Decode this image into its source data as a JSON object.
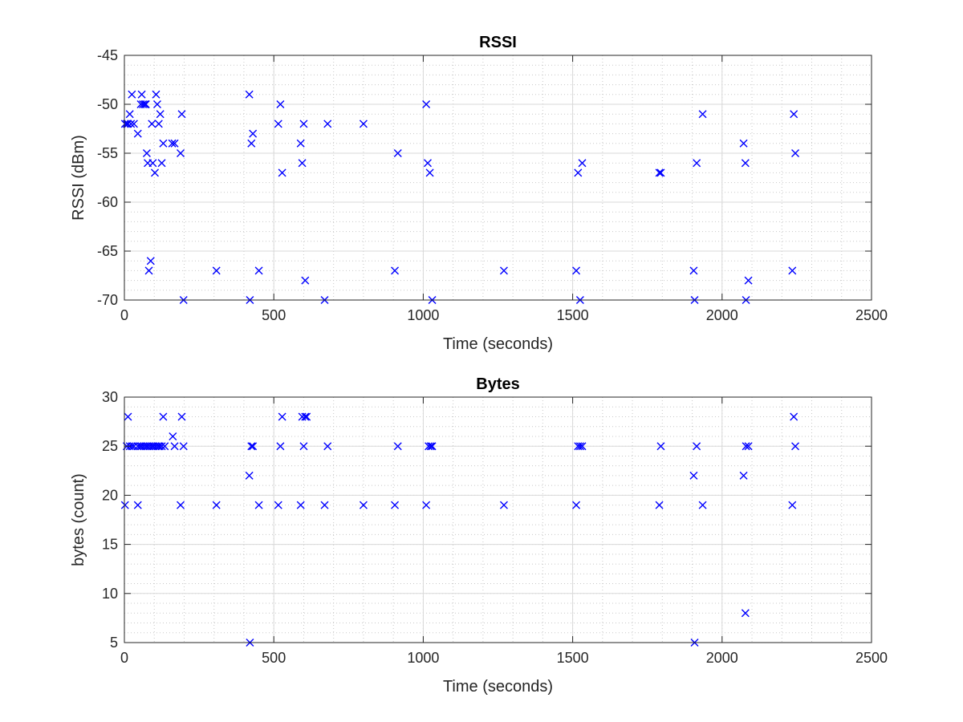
{
  "chart_data": [
    {
      "type": "scatter",
      "title": "RSSI",
      "xlabel": "Time (seconds)",
      "ylabel": "RSSI (dBm)",
      "xlim": [
        0,
        2500
      ],
      "ylim": [
        -70,
        -45
      ],
      "xticks": [
        0,
        500,
        1000,
        1500,
        2000,
        2500
      ],
      "yticks": [
        -70,
        -65,
        -60,
        -55,
        -50,
        -45
      ],
      "grid": true,
      "minor_grid": true,
      "marker": "x",
      "color": "#0000ff",
      "points": [
        [
          2,
          -52
        ],
        [
          8,
          -52
        ],
        [
          12,
          -52
        ],
        [
          18,
          -51
        ],
        [
          22,
          -52
        ],
        [
          25,
          -49
        ],
        [
          32,
          -52
        ],
        [
          45,
          -53
        ],
        [
          55,
          -50
        ],
        [
          58,
          -49
        ],
        [
          62,
          -50
        ],
        [
          68,
          -50
        ],
        [
          72,
          -50
        ],
        [
          75,
          -55
        ],
        [
          78,
          -56
        ],
        [
          82,
          -67
        ],
        [
          88,
          -66
        ],
        [
          92,
          -52
        ],
        [
          95,
          -56
        ],
        [
          102,
          -57
        ],
        [
          106,
          -49
        ],
        [
          110,
          -50
        ],
        [
          115,
          -52
        ],
        [
          120,
          -51
        ],
        [
          125,
          -56
        ],
        [
          130,
          -54
        ],
        [
          160,
          -54
        ],
        [
          168,
          -54
        ],
        [
          188,
          -55
        ],
        [
          192,
          -51
        ],
        [
          198,
          -70
        ],
        [
          308,
          -67
        ],
        [
          418,
          -49
        ],
        [
          420,
          -70
        ],
        [
          425,
          -54
        ],
        [
          430,
          -53
        ],
        [
          450,
          -67
        ],
        [
          515,
          -52
        ],
        [
          522,
          -50
        ],
        [
          528,
          -57
        ],
        [
          590,
          -54
        ],
        [
          595,
          -56
        ],
        [
          600,
          -52
        ],
        [
          605,
          -68
        ],
        [
          670,
          -70
        ],
        [
          680,
          -52
        ],
        [
          800,
          -52
        ],
        [
          905,
          -67
        ],
        [
          915,
          -55
        ],
        [
          1010,
          -50
        ],
        [
          1015,
          -56
        ],
        [
          1022,
          -57
        ],
        [
          1030,
          -70
        ],
        [
          1270,
          -67
        ],
        [
          1512,
          -67
        ],
        [
          1518,
          -57
        ],
        [
          1525,
          -70
        ],
        [
          1532,
          -56
        ],
        [
          1790,
          -57
        ],
        [
          1795,
          -57
        ],
        [
          1905,
          -67
        ],
        [
          1908,
          -70
        ],
        [
          1915,
          -56
        ],
        [
          1935,
          -51
        ],
        [
          2072,
          -54
        ],
        [
          2078,
          -56
        ],
        [
          2080,
          -70
        ],
        [
          2088,
          -68
        ],
        [
          2235,
          -67
        ],
        [
          2240,
          -51
        ],
        [
          2245,
          -55
        ]
      ]
    },
    {
      "type": "scatter",
      "title": "Bytes",
      "xlabel": "Time (seconds)",
      "ylabel": "bytes (count)",
      "xlim": [
        0,
        2500
      ],
      "ylim": [
        5,
        30
      ],
      "xticks": [
        0,
        500,
        1000,
        1500,
        2000,
        2500
      ],
      "yticks": [
        5,
        10,
        15,
        20,
        25,
        30
      ],
      "grid": true,
      "minor_grid": true,
      "marker": "x",
      "color": "#0000ff",
      "points": [
        [
          2,
          19
        ],
        [
          8,
          25
        ],
        [
          12,
          28
        ],
        [
          18,
          25
        ],
        [
          25,
          25
        ],
        [
          32,
          25
        ],
        [
          45,
          19
        ],
        [
          45,
          25
        ],
        [
          52,
          25
        ],
        [
          58,
          25
        ],
        [
          65,
          25
        ],
        [
          72,
          25
        ],
        [
          78,
          25
        ],
        [
          85,
          25
        ],
        [
          92,
          25
        ],
        [
          98,
          25
        ],
        [
          105,
          25
        ],
        [
          112,
          25
        ],
        [
          118,
          25
        ],
        [
          125,
          25
        ],
        [
          130,
          28
        ],
        [
          135,
          25
        ],
        [
          162,
          26
        ],
        [
          168,
          25
        ],
        [
          188,
          19
        ],
        [
          192,
          28
        ],
        [
          198,
          25
        ],
        [
          308,
          19
        ],
        [
          418,
          22
        ],
        [
          420,
          5
        ],
        [
          425,
          25
        ],
        [
          430,
          25
        ],
        [
          450,
          19
        ],
        [
          515,
          19
        ],
        [
          522,
          25
        ],
        [
          528,
          28
        ],
        [
          590,
          19
        ],
        [
          595,
          28
        ],
        [
          600,
          25
        ],
        [
          605,
          28
        ],
        [
          610,
          28
        ],
        [
          670,
          19
        ],
        [
          680,
          25
        ],
        [
          800,
          19
        ],
        [
          905,
          19
        ],
        [
          915,
          25
        ],
        [
          1010,
          19
        ],
        [
          1018,
          25
        ],
        [
          1025,
          25
        ],
        [
          1030,
          25
        ],
        [
          1270,
          19
        ],
        [
          1512,
          19
        ],
        [
          1518,
          25
        ],
        [
          1525,
          25
        ],
        [
          1532,
          25
        ],
        [
          1790,
          19
        ],
        [
          1795,
          25
        ],
        [
          1905,
          22
        ],
        [
          1908,
          5
        ],
        [
          1915,
          25
        ],
        [
          1935,
          19
        ],
        [
          2072,
          22
        ],
        [
          2078,
          8
        ],
        [
          2080,
          25
        ],
        [
          2088,
          25
        ],
        [
          2235,
          19
        ],
        [
          2240,
          28
        ],
        [
          2245,
          25
        ]
      ]
    }
  ]
}
